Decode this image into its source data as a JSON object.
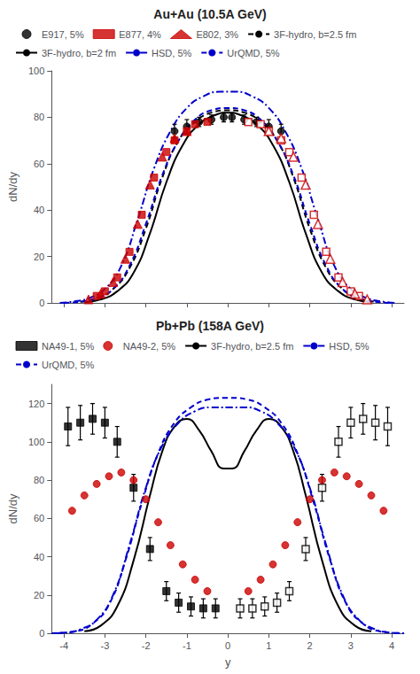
{
  "chart_data": [
    {
      "type": "line",
      "title": "Au+Au (10.5A GeV)",
      "ylabel": "dN/dy",
      "xlim": [
        -4.3,
        4.3
      ],
      "xticks": [
        -4,
        -3,
        -2,
        -1,
        0,
        1,
        2,
        3,
        4
      ],
      "ylim": [
        0,
        100
      ],
      "yticks": [
        0,
        20,
        40,
        60,
        80,
        100
      ],
      "grid": false,
      "legend": "top",
      "tick_labels": "y",
      "series": [
        {
          "name": "E917, 5%",
          "type": "scatter",
          "marker": "circle",
          "color": "#000000",
          "x": [
            -1.3,
            -1.0,
            -0.7,
            -0.4,
            -0.1,
            0.1,
            0.4,
            0.7,
            1.0,
            1.3
          ],
          "values": [
            74,
            76,
            78,
            79,
            80,
            80,
            79,
            78,
            76,
            74
          ],
          "errors": [
            3,
            3,
            2,
            2,
            2,
            2,
            2,
            2,
            3,
            3
          ]
        },
        {
          "name": "E877, 4%",
          "type": "scatter",
          "marker": "square",
          "color": "#cc0000",
          "x": [
            -3.2,
            -3.0,
            -2.7,
            -2.4,
            -2.1,
            -1.8,
            -1.5,
            -1.3,
            -1.0,
            -0.8,
            -0.5
          ],
          "values": [
            3,
            5,
            11,
            22,
            38,
            54,
            65,
            70,
            74,
            77,
            78
          ]
        },
        {
          "name": "E877, 4%",
          "type": "scatter",
          "marker": "open square",
          "color": "#cc0000",
          "x": [
            0.5,
            0.8,
            1.0,
            1.3,
            1.5,
            1.8,
            2.1,
            2.4,
            2.7,
            3.0,
            3.2
          ],
          "values": [
            78,
            77,
            74,
            70,
            65,
            54,
            38,
            22,
            11,
            5,
            3
          ]
        },
        {
          "name": "E802, 3%",
          "type": "scatter",
          "marker": "triangle",
          "color": "#cc0000",
          "x": [
            -3.4,
            -3.1,
            -2.8,
            -2.5,
            -2.2,
            -1.9,
            -1.6,
            -1.3,
            -1.0
          ],
          "values": [
            1.5,
            4,
            9,
            19,
            34,
            51,
            63,
            71,
            74
          ]
        },
        {
          "name": "E802, 3%",
          "type": "scatter",
          "marker": "open triangle",
          "color": "#cc0000",
          "x": [
            1.0,
            1.3,
            1.6,
            1.9,
            2.2,
            2.5,
            2.8,
            3.1,
            3.4
          ],
          "values": [
            74,
            71,
            63,
            51,
            34,
            19,
            9,
            4,
            1.5
          ]
        },
        {
          "name": "3F-hydro, b=2.5 fm",
          "type": "line",
          "line_style": "dashed",
          "color": "#000000",
          "x": [
            -3.6,
            -3.2,
            -2.8,
            -2.4,
            -2.0,
            -1.6,
            -1.2,
            -0.8,
            -0.4,
            0.0,
            0.4,
            0.8,
            1.2,
            1.6,
            2.0,
            2.4,
            2.8,
            3.2,
            3.6
          ],
          "values": [
            0.5,
            2,
            6,
            15,
            32,
            54,
            70,
            78,
            82,
            83,
            82,
            78,
            70,
            54,
            32,
            15,
            6,
            2,
            0.5
          ]
        },
        {
          "name": "3F-hydro, b=2 fm",
          "type": "line",
          "line_style": "solid",
          "color": "#000000",
          "x": [
            -3.5,
            -3.1,
            -2.7,
            -2.3,
            -1.9,
            -1.5,
            -1.1,
            -0.7,
            -0.3,
            0.0,
            0.3,
            0.7,
            1.1,
            1.5,
            1.9,
            2.3,
            2.7,
            3.1,
            3.5
          ],
          "values": [
            0.3,
            1.5,
            5,
            13,
            30,
            52,
            68,
            77,
            81,
            82,
            81,
            77,
            68,
            52,
            30,
            13,
            5,
            1.5,
            0.3
          ]
        },
        {
          "name": "HSD, 5%",
          "type": "line",
          "line_style": "dashdot",
          "color": "#0000cc",
          "x": [
            -4.1,
            -3.8,
            -3.4,
            -3.0,
            -2.6,
            -2.2,
            -1.8,
            -1.4,
            -1.0,
            -0.6,
            -0.2,
            0.2,
            0.6,
            1.0,
            1.4,
            1.8,
            2.2,
            2.6,
            3.0,
            3.4,
            3.8,
            4.1
          ],
          "values": [
            0,
            0.5,
            2,
            6,
            16,
            36,
            58,
            74,
            84,
            89,
            91,
            91,
            89,
            84,
            74,
            58,
            36,
            16,
            6,
            2,
            0.5,
            0
          ]
        },
        {
          "name": "UrQMD, 5%",
          "type": "line",
          "line_style": "dashed",
          "color": "#0000cc",
          "x": [
            -4.0,
            -3.6,
            -3.2,
            -2.8,
            -2.4,
            -2.0,
            -1.6,
            -1.2,
            -0.8,
            -0.4,
            0.0,
            0.4,
            0.8,
            1.2,
            1.6,
            2.0,
            2.4,
            2.8,
            3.2,
            3.6,
            4.0
          ],
          "values": [
            0,
            0.5,
            2,
            6,
            16,
            34,
            55,
            70,
            79,
            83,
            84,
            83,
            79,
            70,
            55,
            34,
            16,
            6,
            2,
            0.5,
            0
          ]
        }
      ]
    },
    {
      "type": "line",
      "title": "Pb+Pb (158A GeV)",
      "xlabel": "y",
      "ylabel": "dN/dy",
      "xlim": [
        -4.3,
        4.3
      ],
      "xticks": [
        -4,
        -3,
        -2,
        -1,
        0,
        1,
        2,
        3,
        4
      ],
      "ylim": [
        0,
        130
      ],
      "yticks": [
        0,
        20,
        40,
        60,
        80,
        100,
        120
      ],
      "grid": false,
      "legend": "top",
      "series": [
        {
          "name": "NA49-1, 5%",
          "type": "scatter",
          "marker": "square",
          "color": "#000000",
          "x": [
            -3.9,
            -3.6,
            -3.3,
            -3.0,
            -2.7,
            -2.3,
            -1.9,
            -1.5,
            -1.2,
            -0.9,
            -0.6,
            -0.3
          ],
          "values": [
            108,
            110,
            112,
            110,
            100,
            76,
            44,
            22,
            16,
            14,
            13,
            13
          ],
          "errors": [
            10,
            9,
            8,
            8,
            8,
            7,
            6,
            5,
            5,
            5,
            5,
            5
          ]
        },
        {
          "name": "NA49-1, 5%",
          "type": "scatter",
          "marker": "open square",
          "color": "#000000",
          "x": [
            0.3,
            0.6,
            0.9,
            1.2,
            1.5,
            1.9,
            2.3,
            2.7,
            3.0,
            3.3,
            3.6,
            3.9
          ],
          "values": [
            13,
            13,
            14,
            16,
            22,
            44,
            76,
            100,
            110,
            112,
            110,
            108
          ],
          "errors": [
            5,
            5,
            5,
            5,
            5,
            6,
            7,
            8,
            8,
            8,
            9,
            10
          ]
        },
        {
          "name": "NA49-2, 5%",
          "type": "scatter",
          "marker": "circle",
          "color": "#cc0000",
          "x": [
            -3.8,
            -3.5,
            -3.2,
            -2.9,
            -2.6,
            -2.3,
            -2.0,
            -1.7,
            -1.4,
            -1.1,
            -0.8,
            -0.5,
            0.5,
            0.8,
            1.1,
            1.4,
            1.7,
            2.0,
            2.3,
            2.6,
            2.9,
            3.2,
            3.5,
            3.8
          ],
          "values": [
            64,
            72,
            78,
            82,
            84,
            80,
            70,
            58,
            46,
            36,
            28,
            22,
            22,
            28,
            36,
            46,
            58,
            70,
            80,
            84,
            82,
            78,
            72,
            64
          ]
        },
        {
          "name": "3F-hydro, b=2.5 fm",
          "type": "line",
          "line_style": "solid",
          "color": "#000000",
          "x": [
            -3.5,
            -3.1,
            -2.7,
            -2.3,
            -1.9,
            -1.6,
            -1.3,
            -1.0,
            -0.7,
            -0.4,
            -0.1,
            0.1,
            0.4,
            0.7,
            1.0,
            1.3,
            1.6,
            1.9,
            2.3,
            2.7,
            3.1,
            3.5
          ],
          "values": [
            1,
            4,
            14,
            38,
            72,
            95,
            108,
            112,
            106,
            95,
            86,
            86,
            95,
            106,
            112,
            108,
            95,
            72,
            38,
            14,
            4,
            1
          ]
        },
        {
          "name": "HSD, 5%",
          "type": "line",
          "line_style": "dashdot",
          "color": "#0000cc",
          "x": [
            -4.2,
            -3.9,
            -3.6,
            -3.2,
            -2.8,
            -2.4,
            -2.0,
            -1.6,
            -1.2,
            -0.8,
            -0.4,
            0.0,
            0.4,
            0.8,
            1.2,
            1.6,
            2.0,
            2.4,
            2.8,
            3.2,
            3.6,
            3.9,
            4.2
          ],
          "values": [
            0,
            0.5,
            2,
            7,
            20,
            46,
            76,
            98,
            110,
            116,
            118,
            118,
            118,
            116,
            110,
            98,
            76,
            46,
            20,
            7,
            2,
            0.5,
            0
          ]
        },
        {
          "name": "UrQMD, 5%",
          "type": "line",
          "line_style": "dashed",
          "color": "#0000cc",
          "x": [
            -4.3,
            -4.0,
            -3.7,
            -3.3,
            -2.9,
            -2.5,
            -2.1,
            -1.7,
            -1.3,
            -0.9,
            -0.5,
            -0.1,
            0.1,
            0.5,
            0.9,
            1.3,
            1.7,
            2.1,
            2.5,
            2.9,
            3.3,
            3.7,
            4.0,
            4.3
          ],
          "values": [
            0,
            0.3,
            1,
            5,
            15,
            38,
            68,
            94,
            110,
            118,
            122,
            123,
            123,
            122,
            118,
            110,
            94,
            68,
            38,
            15,
            5,
            1,
            0.3,
            0
          ]
        }
      ]
    }
  ]
}
